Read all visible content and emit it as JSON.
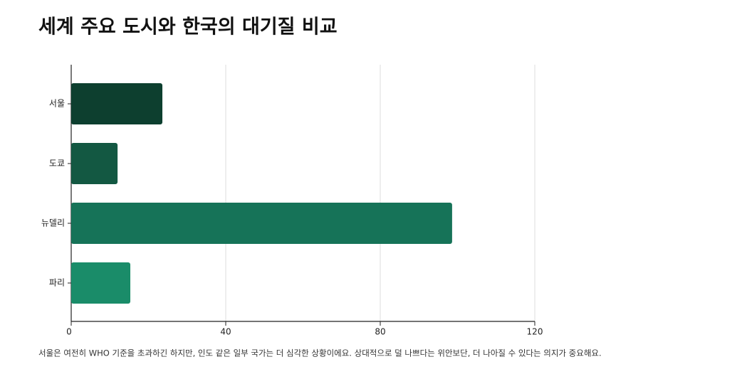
{
  "chart_data": {
    "type": "barh",
    "title": "세계 주요 도시와 한국의 대기질 비교",
    "categories": [
      "서울",
      "도쿄",
      "뉴델리",
      "파리"
    ],
    "values": [
      23.6,
      12.0,
      98.6,
      15.3
    ],
    "colors": [
      "#0d3f2f",
      "#135842",
      "#167358",
      "#1a8c69"
    ],
    "xlim": [
      0,
      120
    ],
    "xticks": [
      0,
      40,
      80,
      120
    ],
    "grid": true,
    "note": "서울은 여전히 WHO 기준을 초과하긴 하지만, 인도 같은 일부 국가는 더 심각한 상황이에요. 상대적으로 덜 나쁘다는 위안보단, 더 나아질 수 있다는 의지가 중요해요."
  }
}
